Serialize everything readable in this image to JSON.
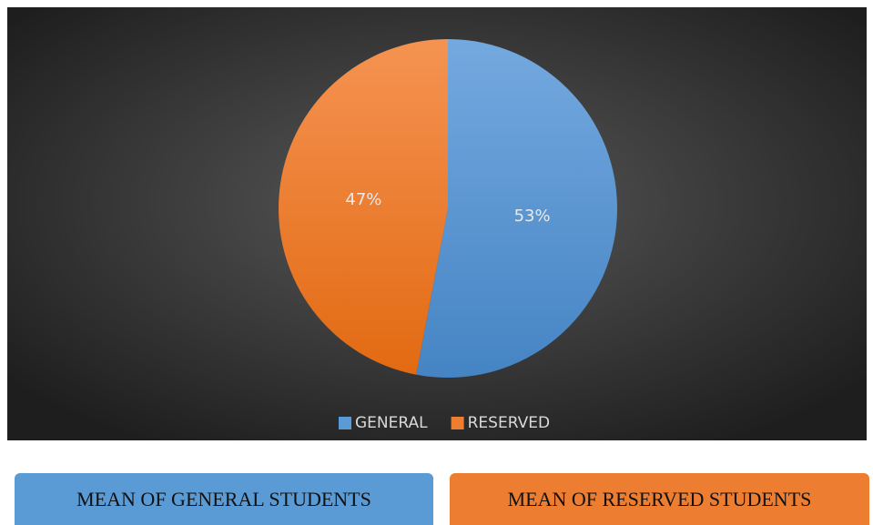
{
  "chart_data": {
    "type": "pie",
    "categories": [
      "GENERAL",
      "RESERVED"
    ],
    "values": [
      53,
      47
    ],
    "value_labels": [
      "53%",
      "47%"
    ],
    "colors": [
      "#5b9bd5",
      "#ed7d31"
    ],
    "legend": "bottom"
  },
  "buttons": [
    {
      "label": "MEAN OF GENERAL STUDENTS",
      "color": "#5b9bd5"
    },
    {
      "label": "MEAN OF RESERVED STUDENTS",
      "color": "#ed7d31"
    }
  ]
}
